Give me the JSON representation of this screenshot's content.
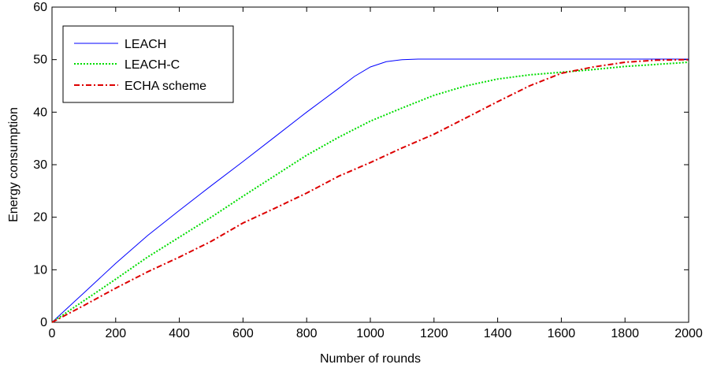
{
  "chart_data": {
    "type": "line",
    "xlabel": "Number of rounds",
    "ylabel": "Energy consumption",
    "xlim": [
      0,
      2000
    ],
    "ylim": [
      0,
      60
    ],
    "xticks": [
      0,
      200,
      400,
      600,
      800,
      1000,
      1200,
      1400,
      1600,
      1800,
      2000
    ],
    "yticks": [
      0,
      10,
      20,
      30,
      40,
      50,
      60
    ],
    "grid": false,
    "legend_position": "top-left",
    "series": [
      {
        "name": "LEACH",
        "color": "#0000ff",
        "style": "solid",
        "x": [
          0,
          100,
          200,
          300,
          400,
          500,
          600,
          700,
          800,
          900,
          950,
          1000,
          1050,
          1100,
          1150,
          1200,
          1400,
          1600,
          1800,
          2000
        ],
        "y": [
          0,
          5.6,
          11.2,
          16.5,
          21.3,
          26.0,
          30.6,
          35.3,
          40.0,
          44.5,
          46.8,
          48.6,
          49.6,
          50.0,
          50.1,
          50.1,
          50.1,
          50.1,
          50.1,
          50.1
        ]
      },
      {
        "name": "LEACH-C",
        "color": "#00dd00",
        "style": "dotted",
        "x": [
          0,
          100,
          200,
          300,
          400,
          500,
          600,
          700,
          800,
          900,
          1000,
          1100,
          1200,
          1300,
          1400,
          1500,
          1600,
          1700,
          1800,
          1900,
          2000
        ],
        "y": [
          0,
          4.1,
          8.2,
          12.4,
          16.2,
          20.0,
          24.0,
          27.9,
          31.8,
          35.2,
          38.3,
          40.8,
          43.2,
          45.0,
          46.3,
          47.1,
          47.6,
          48.1,
          48.7,
          49.1,
          49.5
        ]
      },
      {
        "name": "ECHA scheme",
        "color": "#dd0000",
        "style": "dashdot",
        "x": [
          0,
          100,
          200,
          300,
          400,
          500,
          600,
          700,
          800,
          900,
          1000,
          1100,
          1200,
          1300,
          1400,
          1500,
          1600,
          1700,
          1800,
          1900,
          2000
        ],
        "y": [
          0,
          3.2,
          6.5,
          9.6,
          12.4,
          15.4,
          18.9,
          21.7,
          24.6,
          27.8,
          30.4,
          33.2,
          35.8,
          38.9,
          42.0,
          45.0,
          47.4,
          48.6,
          49.5,
          49.9,
          50.0
        ]
      }
    ]
  }
}
